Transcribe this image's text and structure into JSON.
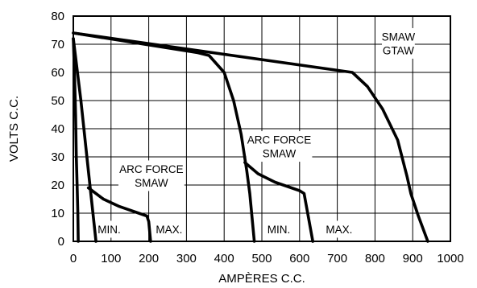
{
  "chart_data": {
    "type": "line",
    "xlabel": "AMPÈRES C.C.",
    "ylabel": "VOLTS C.C.",
    "xlim": [
      0,
      1000
    ],
    "ylim": [
      0,
      80
    ],
    "xticks": [
      0,
      100,
      200,
      300,
      400,
      500,
      600,
      700,
      800,
      900,
      1000
    ],
    "yticks": [
      0,
      10,
      20,
      30,
      40,
      50,
      60,
      70,
      80
    ],
    "grid": true,
    "legend": "none",
    "series": [
      {
        "points": [
          [
            0,
            74
          ],
          [
            740,
            60
          ],
          [
            780,
            55
          ],
          [
            820,
            47
          ],
          [
            860,
            36
          ],
          [
            885,
            23
          ],
          [
            895,
            17
          ],
          [
            915,
            9
          ],
          [
            940,
            0
          ]
        ]
      },
      {
        "points": [
          [
            0,
            74
          ],
          [
            330,
            67
          ],
          [
            360,
            66
          ],
          [
            400,
            60
          ],
          [
            425,
            50
          ],
          [
            445,
            38
          ],
          [
            460,
            25
          ],
          [
            468,
            17
          ],
          [
            480,
            0
          ]
        ]
      },
      {
        "points": [
          [
            455,
            28
          ],
          [
            490,
            24
          ],
          [
            535,
            21
          ],
          [
            600,
            18
          ],
          [
            612,
            17
          ],
          [
            635,
            0
          ]
        ]
      },
      {
        "points": [
          [
            0,
            72
          ],
          [
            20,
            50
          ],
          [
            40,
            25
          ],
          [
            60,
            0
          ]
        ]
      },
      {
        "points": [
          [
            0,
            72
          ],
          [
            3,
            60
          ],
          [
            6,
            45
          ],
          [
            8,
            30
          ],
          [
            10,
            20
          ],
          [
            12,
            10
          ],
          [
            13,
            0
          ]
        ]
      },
      {
        "points": [
          [
            40,
            19
          ],
          [
            80,
            15
          ],
          [
            120,
            12.5
          ],
          [
            195,
            9
          ],
          [
            200,
            7
          ],
          [
            205,
            0
          ]
        ]
      }
    ],
    "annotations": [
      {
        "lines": [
          "SMAW",
          "GTAW"
        ],
        "x": 862,
        "y": 70.3
      },
      {
        "lines": [
          "ARC FORCE",
          "SMAW"
        ],
        "x": 546,
        "y": 33.7
      },
      {
        "lines": [
          "ARC FORCE",
          "SMAW"
        ],
        "x": 207,
        "y": 23.3
      },
      {
        "lines": [
          "MIN."
        ],
        "x": 95,
        "y": 4.3
      },
      {
        "lines": [
          "MAX."
        ],
        "x": 254,
        "y": 4.3
      },
      {
        "lines": [
          "MIN."
        ],
        "x": 545,
        "y": 4.3
      },
      {
        "lines": [
          "MAX."
        ],
        "x": 705,
        "y": 4.3
      }
    ]
  }
}
